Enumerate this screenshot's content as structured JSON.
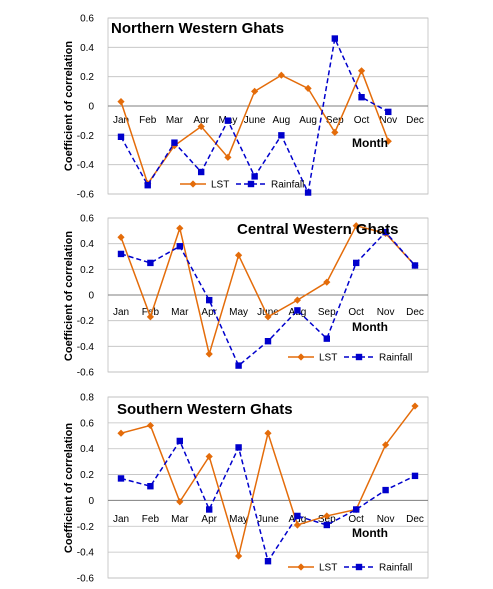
{
  "colors": {
    "lst": "#E46C0A",
    "rainfall": "#0000CC",
    "grid": "#BFBFBF",
    "axis": "#7F7F7F"
  },
  "chart_data": [
    {
      "type": "line",
      "title": "Northern Western Ghats",
      "xlabel": "Month",
      "ylabel": "Coefficient of correlation",
      "categories": [
        "Jan",
        "Feb",
        "Mar",
        "Apr",
        "May",
        "June",
        "Aug",
        "Aug",
        "Sep",
        "Oct",
        "Nov",
        "Dec"
      ],
      "ylim": [
        -0.6,
        0.6
      ],
      "yticks": [
        "0.6",
        "0.4",
        "0.2",
        "0",
        "-0.2",
        "-0.4",
        "-0.6"
      ],
      "grid": true,
      "legend": "bottom-center",
      "series": [
        {
          "name": "LST",
          "style": "solid",
          "marker": "diamond",
          "values": [
            0.03,
            -0.53,
            -0.27,
            -0.14,
            -0.35,
            0.1,
            0.21,
            0.12,
            -0.18,
            0.24,
            -0.24,
            null
          ]
        },
        {
          "name": "Rainfall",
          "style": "dashed",
          "marker": "square",
          "values": [
            -0.21,
            -0.54,
            -0.25,
            -0.45,
            -0.1,
            -0.48,
            -0.2,
            -0.59,
            0.46,
            0.06,
            -0.04,
            null
          ]
        }
      ]
    },
    {
      "type": "line",
      "title": "Central Western Ghats",
      "xlabel": "Month",
      "ylabel": "Coefficient of correlation",
      "categories": [
        "Jan",
        "Feb",
        "Mar",
        "Apr",
        "May",
        "June",
        "Aug",
        "Sep",
        "Oct",
        "Nov",
        "Dec"
      ],
      "ylim": [
        -0.6,
        0.6
      ],
      "yticks": [
        "0.6",
        "0.4",
        "0.2",
        "0",
        "-0.2",
        "-0.4",
        "-0.6"
      ],
      "grid": true,
      "legend": "bottom-center",
      "series": [
        {
          "name": "LST",
          "style": "solid",
          "marker": "diamond",
          "values": [
            0.45,
            -0.17,
            0.52,
            -0.46,
            0.31,
            -0.17,
            -0.04,
            0.1,
            0.54,
            0.48,
            0.23
          ]
        },
        {
          "name": "Rainfall",
          "style": "dashed",
          "marker": "square",
          "values": [
            0.32,
            0.25,
            0.38,
            -0.04,
            -0.55,
            -0.36,
            -0.12,
            -0.34,
            0.25,
            0.49,
            0.23
          ]
        }
      ]
    },
    {
      "type": "line",
      "title": "Southern Western Ghats",
      "xlabel": "Month",
      "ylabel": "Coefficient of correlation",
      "categories": [
        "Jan",
        "Feb",
        "Mar",
        "Apr",
        "May",
        "June",
        "Aug",
        "Sep",
        "Oct",
        "Nov",
        "Dec"
      ],
      "ylim": [
        -0.6,
        0.8
      ],
      "yticks": [
        "0.8",
        "0.6",
        "0.4",
        "0.2",
        "0",
        "-0.2",
        "-0.4",
        "-0.6"
      ],
      "grid": true,
      "legend": "bottom-center",
      "series": [
        {
          "name": "LST",
          "style": "solid",
          "marker": "diamond",
          "values": [
            0.52,
            0.58,
            -0.01,
            0.34,
            -0.43,
            0.52,
            -0.19,
            -0.12,
            -0.07,
            0.43,
            0.73
          ]
        },
        {
          "name": "Rainfall",
          "style": "dashed",
          "marker": "square",
          "values": [
            0.17,
            0.11,
            0.46,
            -0.07,
            0.41,
            -0.47,
            -0.12,
            -0.19,
            -0.07,
            0.08,
            0.19
          ]
        }
      ]
    }
  ]
}
